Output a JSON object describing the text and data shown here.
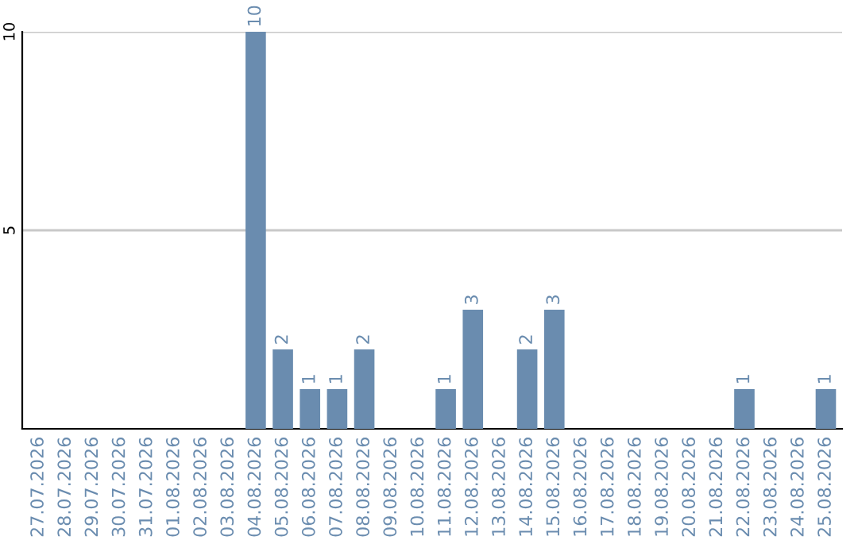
{
  "chart_data": {
    "type": "bar",
    "categories": [
      "27.07.2026",
      "28.07.2026",
      "29.07.2026",
      "30.07.2026",
      "31.07.2026",
      "01.08.2026",
      "02.08.2026",
      "03.08.2026",
      "04.08.2026",
      "05.08.2026",
      "06.08.2026",
      "07.08.2026",
      "08.08.2026",
      "09.08.2026",
      "10.08.2026",
      "11.08.2026",
      "12.08.2026",
      "13.08.2026",
      "14.08.2026",
      "15.08.2026",
      "16.08.2026",
      "17.08.2026",
      "18.08.2026",
      "19.08.2026",
      "20.08.2026",
      "21.08.2026",
      "22.08.2026",
      "23.08.2026",
      "24.08.2026",
      "25.08.2026"
    ],
    "values": [
      0,
      0,
      0,
      0,
      0,
      0,
      0,
      0,
      10,
      2,
      1,
      1,
      2,
      0,
      0,
      1,
      3,
      0,
      2,
      3,
      0,
      0,
      0,
      0,
      0,
      0,
      1,
      0,
      0,
      1
    ],
    "value_labels": [
      null,
      null,
      null,
      null,
      null,
      null,
      null,
      null,
      "10",
      "2",
      "1",
      "1",
      "2",
      null,
      null,
      "1",
      "3",
      null,
      "2",
      "3",
      null,
      null,
      null,
      null,
      null,
      null,
      "1",
      null,
      null,
      "1"
    ],
    "color": "#6a8caf",
    "ylim": [
      0,
      10
    ],
    "yticks": [
      5,
      10
    ],
    "grid": "y"
  }
}
